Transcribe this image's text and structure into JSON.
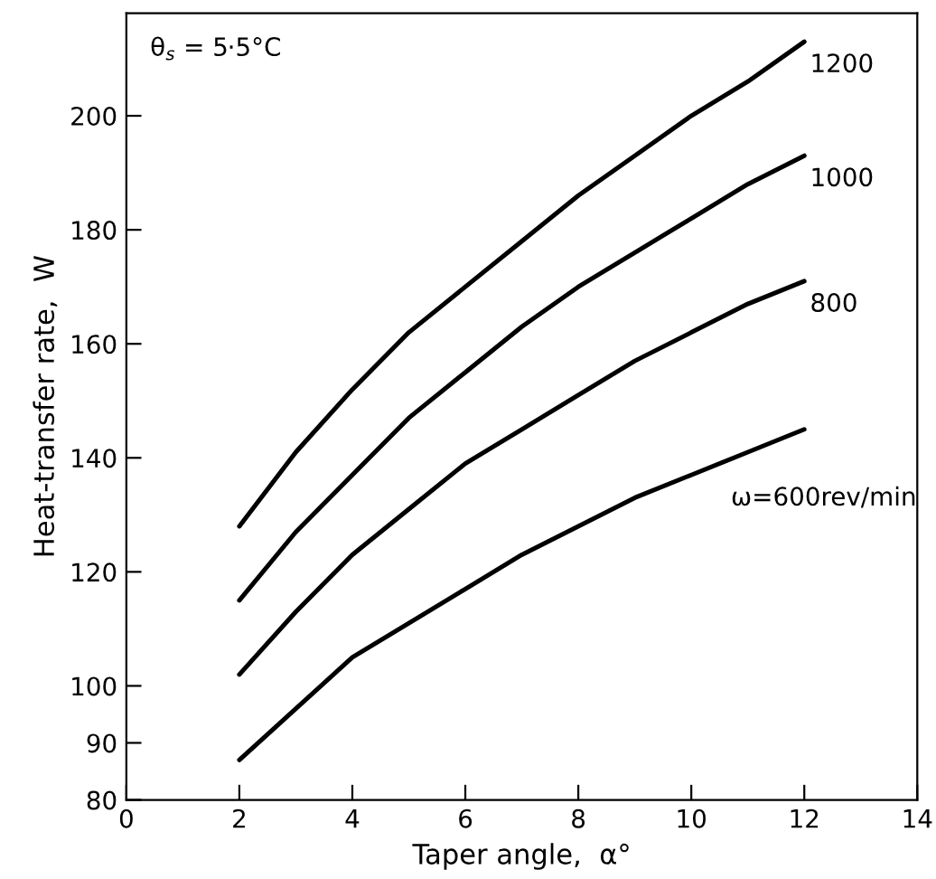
{
  "chart_data": {
    "type": "line",
    "xlabel": "Taper angle,  α°",
    "ylabel": "Heat-transfer rate,  W",
    "annotations": [
      "θ$_{s}$ = 5·5°C"
    ],
    "xlim": [
      0,
      14
    ],
    "xticks": [
      0,
      2,
      4,
      6,
      8,
      10,
      12,
      14
    ],
    "ylim": [
      80,
      218
    ],
    "yticks": [
      80,
      90,
      100,
      120,
      140,
      160,
      180,
      200
    ],
    "grid": false,
    "legend": false,
    "marker": "none",
    "line_style": "solid",
    "series": [
      {
        "name": "1200",
        "color": "#000000",
        "x": [
          2,
          3,
          4,
          5,
          6,
          7,
          8,
          9,
          10,
          11,
          12
        ],
        "values": [
          128,
          141,
          152,
          162,
          170,
          178,
          186,
          193,
          200,
          206,
          213
        ]
      },
      {
        "name": "1000",
        "color": "#000000",
        "x": [
          2,
          3,
          4,
          5,
          6,
          7,
          8,
          9,
          10,
          11,
          12
        ],
        "values": [
          115,
          127,
          137,
          147,
          155,
          163,
          170,
          176,
          182,
          188,
          193
        ]
      },
      {
        "name": "800",
        "color": "#000000",
        "x": [
          2,
          3,
          4,
          5,
          6,
          7,
          8,
          9,
          10,
          11,
          12
        ],
        "values": [
          102,
          113,
          123,
          131,
          139,
          145,
          151,
          157,
          162,
          167,
          171
        ]
      },
      {
        "name": "ω=600rev/min",
        "color": "#000000",
        "x": [
          2,
          3,
          4,
          5,
          6,
          7,
          8,
          9,
          10,
          11,
          12
        ],
        "values": [
          87,
          96,
          105,
          111,
          117,
          123,
          128,
          133,
          137,
          141,
          145
        ]
      }
    ]
  }
}
